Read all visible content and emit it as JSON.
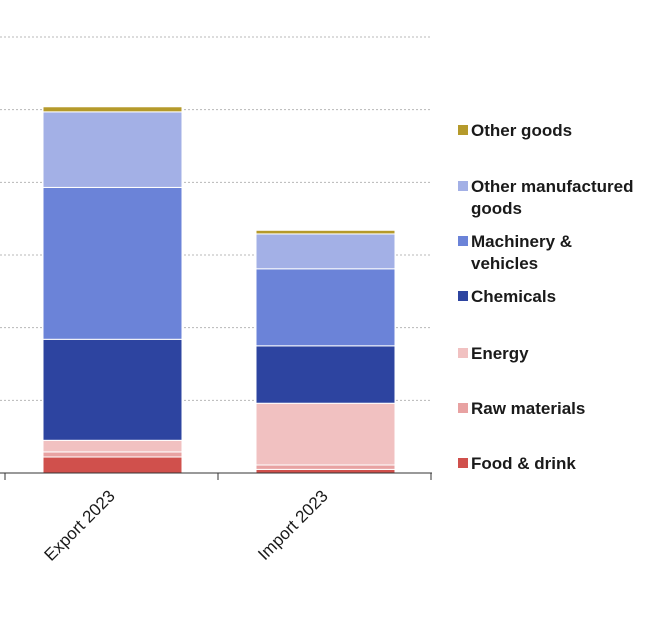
{
  "chart_data": {
    "type": "bar",
    "stacked": true,
    "title": "",
    "xlabel": "",
    "ylabel": "",
    "ylim": [
      0,
      6
    ],
    "grid": true,
    "legend_position": "right",
    "categories": [
      "Export 2023",
      "Import 2023"
    ],
    "series": [
      {
        "name": "Food & drink",
        "color": "#d0504c",
        "values": [
          0.22,
          0.05
        ]
      },
      {
        "name": "Raw materials",
        "color": "#e8a2a2",
        "values": [
          0.07,
          0.06
        ]
      },
      {
        "name": "Energy",
        "color": "#f1c1c1",
        "values": [
          0.16,
          0.85
        ]
      },
      {
        "name": "Chemicals",
        "color": "#2d44a0",
        "values": [
          1.39,
          0.79
        ]
      },
      {
        "name": "Machinery & vehicles",
        "color": "#6b83d8",
        "values": [
          2.09,
          1.06
        ]
      },
      {
        "name": "Other manufactured goods",
        "color": "#a3b0e6",
        "values": [
          1.04,
          0.48
        ]
      },
      {
        "name": "Other goods",
        "color": "#b59a2b",
        "values": [
          0.07,
          0.05
        ]
      }
    ],
    "legend_order": [
      "Other goods",
      "Other manufactured goods",
      "Machinery & vehicles",
      "Chemicals",
      "Energy",
      "Raw materials",
      "Food & drink"
    ]
  }
}
